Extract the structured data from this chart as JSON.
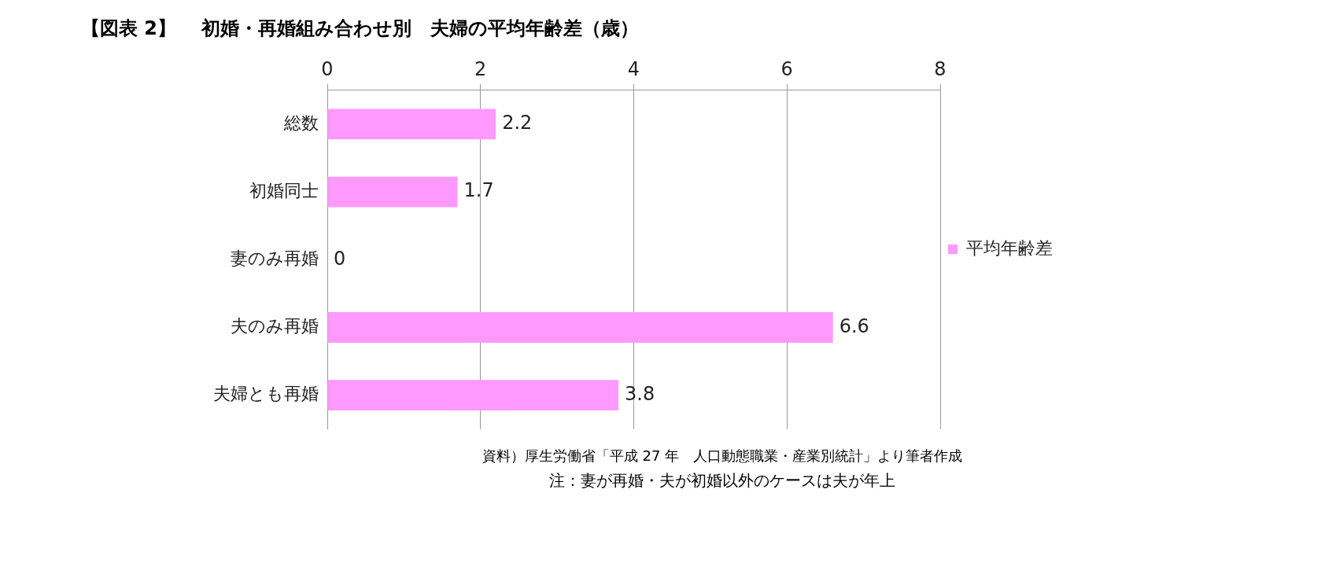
{
  "chart_data": {
    "type": "bar",
    "title": "【図表 2】　 初婚・再婚組み合わせ別　夫婦の平均年齢差（歳）",
    "orientation": "horizontal",
    "categories": [
      "総数",
      "初婚同士",
      "妻のみ再婚",
      "夫のみ再婚",
      "夫婦とも再婚"
    ],
    "series": [
      {
        "name": "平均年齢差",
        "color": "#ff99ff",
        "values": [
          2.2,
          1.7,
          0,
          6.6,
          3.8
        ]
      }
    ],
    "xlim": [
      0,
      8
    ],
    "xticks": [
      0,
      2,
      4,
      6,
      8
    ],
    "grid": "x",
    "legend": "right",
    "data_labels": true,
    "annotations": [
      "資料）厚生労働省「平成 27 年　人口動態職業・産業別統計」より筆者作成",
      "注：妻が再婚・夫が初婚以外のケースは夫が年上"
    ]
  }
}
